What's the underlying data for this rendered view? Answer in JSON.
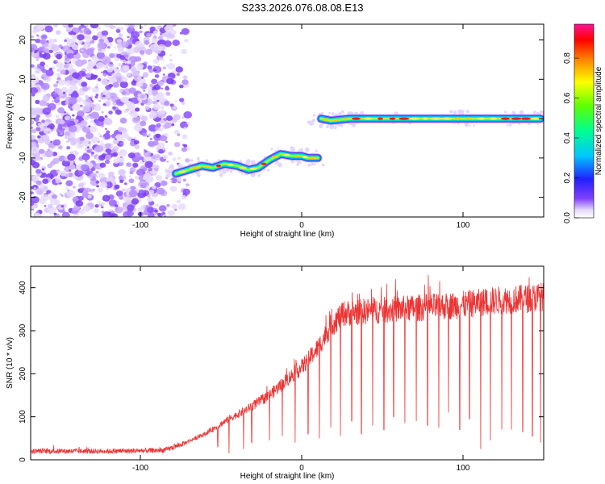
{
  "title": "S233.2026.076.08.08.E13",
  "chart_data": [
    {
      "type": "heatmap",
      "name": "spectrogram",
      "xlabel": "Height of straight line (km)",
      "ylabel": "Frequency (Hz)",
      "xlim": [
        -168,
        150
      ],
      "ylim": [
        -25,
        24
      ],
      "xticks": [
        "-100",
        "0",
        "100"
      ],
      "xtick_values": [
        -100,
        0,
        100
      ],
      "yticks": [
        "20",
        "10",
        "0",
        "-10",
        "-20"
      ],
      "ytick_values": [
        20,
        10,
        0,
        -10,
        -20
      ],
      "noise_region": [
        -168,
        -70
      ],
      "track_segments": [
        {
          "name": "low-frequency track",
          "points": [
            [
              -78,
              -14
            ],
            [
              -70,
              -13
            ],
            [
              -62,
              -12
            ],
            [
              -55,
              -12.5
            ],
            [
              -48,
              -11.5
            ],
            [
              -40,
              -12
            ],
            [
              -33,
              -13
            ],
            [
              -27,
              -12.5
            ],
            [
              -20,
              -10.5
            ],
            [
              -13,
              -9
            ],
            [
              -6,
              -9.5
            ],
            [
              0,
              -9.5
            ],
            [
              4,
              -10
            ],
            [
              10,
              -10
            ]
          ]
        },
        {
          "name": "zero-frequency track",
          "points": [
            [
              12,
              0
            ],
            [
              18,
              -0.5
            ],
            [
              30,
              0
            ],
            [
              60,
              0
            ],
            [
              100,
              0
            ],
            [
              130,
              0
            ],
            [
              148,
              0
            ]
          ]
        }
      ],
      "colorbar": {
        "label": "Normalized spectral amplitude",
        "ticks": [
          "0.0",
          "0.2",
          "0.4",
          "0.6",
          "0.8"
        ],
        "tick_values": [
          0,
          0.2,
          0.4,
          0.6,
          0.8
        ],
        "range": [
          0,
          0.97
        ]
      }
    },
    {
      "type": "line",
      "name": "snr",
      "xlabel": "Height of straight line (km)",
      "ylabel": "SNR (10 * v/v)",
      "xlim": [
        -168,
        150
      ],
      "ylim": [
        0,
        450
      ],
      "xticks": [
        "-100",
        "0",
        "100"
      ],
      "xtick_values": [
        -100,
        0,
        100
      ],
      "yticks": [
        "0",
        "100",
        "200",
        "300",
        "400"
      ],
      "ytick_values": [
        0,
        100,
        200,
        300,
        400
      ],
      "series": [
        {
          "name": "SNR",
          "color": "#ee3333",
          "trend": [
            [
              -168,
              20
            ],
            [
              -120,
              20
            ],
            [
              -85,
              22
            ],
            [
              -75,
              35
            ],
            [
              -60,
              60
            ],
            [
              -45,
              95
            ],
            [
              -35,
              115
            ],
            [
              -20,
              150
            ],
            [
              -8,
              190
            ],
            [
              0,
              215
            ],
            [
              10,
              260
            ],
            [
              18,
              310
            ],
            [
              25,
              340
            ],
            [
              40,
              345
            ],
            [
              60,
              350
            ],
            [
              80,
              355
            ],
            [
              100,
              360
            ],
            [
              120,
              370
            ],
            [
              140,
              375
            ],
            [
              150,
              380
            ]
          ],
          "dropouts": [
            -52,
            -45,
            -36,
            -31,
            -20,
            -12,
            -4,
            4,
            11,
            18,
            24,
            31,
            37,
            44,
            51,
            57,
            64,
            71,
            78,
            85,
            91,
            98,
            104,
            111,
            117,
            124,
            130,
            137,
            143,
            148
          ],
          "dropout_floor": [
            30,
            15,
            25,
            40,
            45,
            55,
            40,
            60,
            50,
            75,
            55,
            90,
            60,
            80,
            70,
            100,
            85,
            90,
            80,
            75,
            110,
            70,
            95,
            25,
            45,
            70,
            70,
            65,
            55,
            40
          ]
        }
      ]
    }
  ]
}
